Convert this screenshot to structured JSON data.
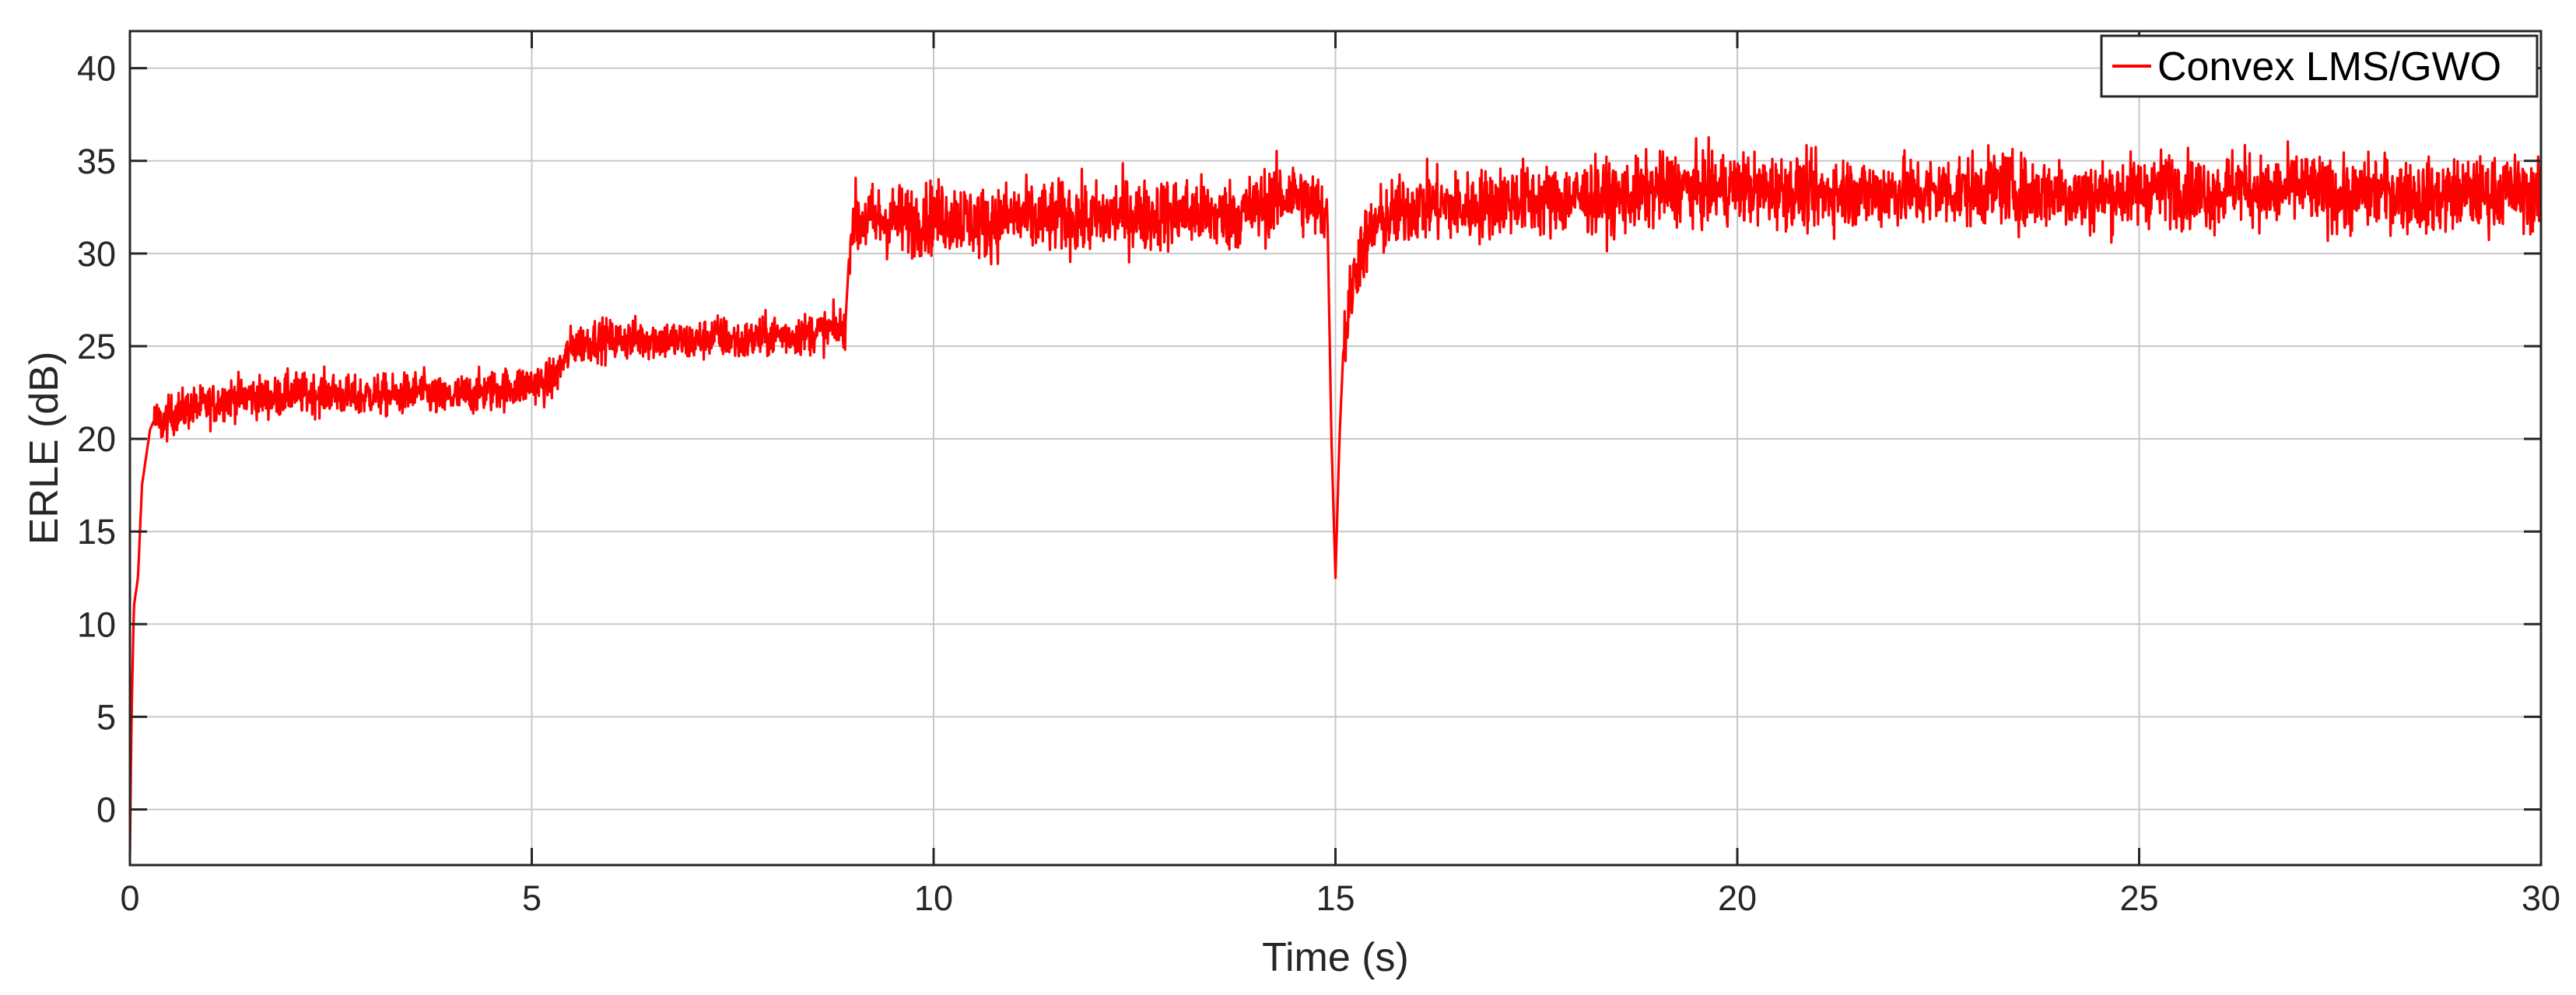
{
  "chart_data": {
    "type": "line",
    "title": "",
    "xlabel": "Time (s)",
    "ylabel": "ERLE (dB)",
    "xlim": [
      0,
      30
    ],
    "ylim": [
      -3,
      42
    ],
    "xticks": [
      0,
      5,
      10,
      15,
      20,
      25,
      30
    ],
    "yticks": [
      0,
      5,
      10,
      15,
      20,
      25,
      30,
      35,
      40
    ],
    "xtick_labels": [
      "0",
      "5",
      "10",
      "15",
      "20",
      "25",
      "30"
    ],
    "ytick_labels": [
      "0",
      "5",
      "10",
      "15",
      "20",
      "25",
      "30",
      "35",
      "40"
    ],
    "grid": true,
    "legend_position": "top-right",
    "series": [
      {
        "name": "Convex LMS/GWO",
        "color": "#ff0000",
        "x": [
          0,
          0.02,
          0.05,
          0.1,
          0.15,
          0.2,
          0.25,
          0.3,
          0.4,
          0.5,
          0.6,
          0.8,
          1.0,
          1.2,
          1.5,
          1.8,
          2.0,
          2.2,
          2.5,
          2.8,
          3.0,
          3.3,
          3.6,
          3.9,
          4.0,
          4.2,
          4.5,
          4.8,
          5.0,
          5.2,
          5.3,
          5.5,
          5.8,
          6.0,
          6.3,
          6.6,
          7.0,
          7.3,
          7.6,
          8.0,
          8.3,
          8.6,
          8.9,
          8.95,
          9.0,
          9.05,
          9.2,
          9.5,
          9.8,
          10.0,
          10.3,
          10.6,
          11.0,
          11.3,
          11.6,
          12.0,
          12.3,
          12.6,
          13.0,
          13.3,
          13.6,
          14.0,
          14.3,
          14.5,
          14.7,
          14.9,
          14.95,
          15.0,
          15.05,
          15.1,
          15.2,
          15.3,
          15.5,
          15.7,
          16.0,
          16.3,
          16.6,
          17.0,
          17.3,
          17.6,
          18.0,
          18.3,
          18.6,
          19.0,
          19.3,
          19.6,
          20.0,
          20.3,
          20.6,
          21.0,
          21.3,
          21.6,
          22.0,
          22.3,
          22.6,
          23.0,
          23.3,
          23.6,
          24.0,
          24.3,
          24.6,
          25.0,
          25.3,
          25.6,
          26.0,
          26.2,
          26.3,
          26.6,
          27.0,
          27.3,
          27.6,
          28.0,
          28.3,
          28.6,
          29.0,
          29.3,
          29.6,
          30.0
        ],
        "y": [
          -2.5,
          5,
          11,
          12.5,
          17.5,
          19,
          20.5,
          21,
          20.8,
          21.2,
          21.5,
          21.7,
          21.8,
          22.2,
          22.3,
          22.2,
          22.5,
          22.4,
          22.5,
          22.2,
          22.4,
          22.3,
          22.6,
          22.1,
          22.3,
          22.4,
          22.6,
          22.8,
          23.0,
          23.0,
          23.4,
          25.0,
          25.4,
          25.3,
          25.4,
          25.4,
          25.2,
          25.6,
          25.2,
          25.6,
          25.6,
          25.8,
          26.0,
          30.0,
          32.0,
          31.6,
          31.8,
          31.8,
          31.8,
          32.0,
          32.0,
          31.6,
          32.0,
          31.8,
          32.0,
          31.8,
          32.2,
          32.0,
          32.2,
          32.2,
          32.0,
          32.4,
          33.0,
          33.2,
          32.6,
          32.2,
          20.0,
          12.5,
          20.0,
          25.0,
          28.0,
          30.0,
          31.5,
          32.0,
          32.6,
          32.6,
          32.4,
          32.8,
          33.0,
          32.8,
          33.0,
          33.0,
          33.0,
          33.4,
          33.6,
          33.4,
          33.6,
          33.4,
          33.4,
          33.2,
          33.4,
          33.2,
          33.4,
          33.2,
          33.4,
          33.4,
          33.6,
          33.2,
          33.4,
          33.0,
          33.2,
          33.4,
          33.6,
          33.4,
          33.2,
          33.8,
          33.6,
          33.2,
          33.6,
          33.2,
          33.0,
          33.4,
          33.2,
          33.0,
          33.2,
          33.2,
          33.4,
          33.0
        ]
      }
    ]
  }
}
